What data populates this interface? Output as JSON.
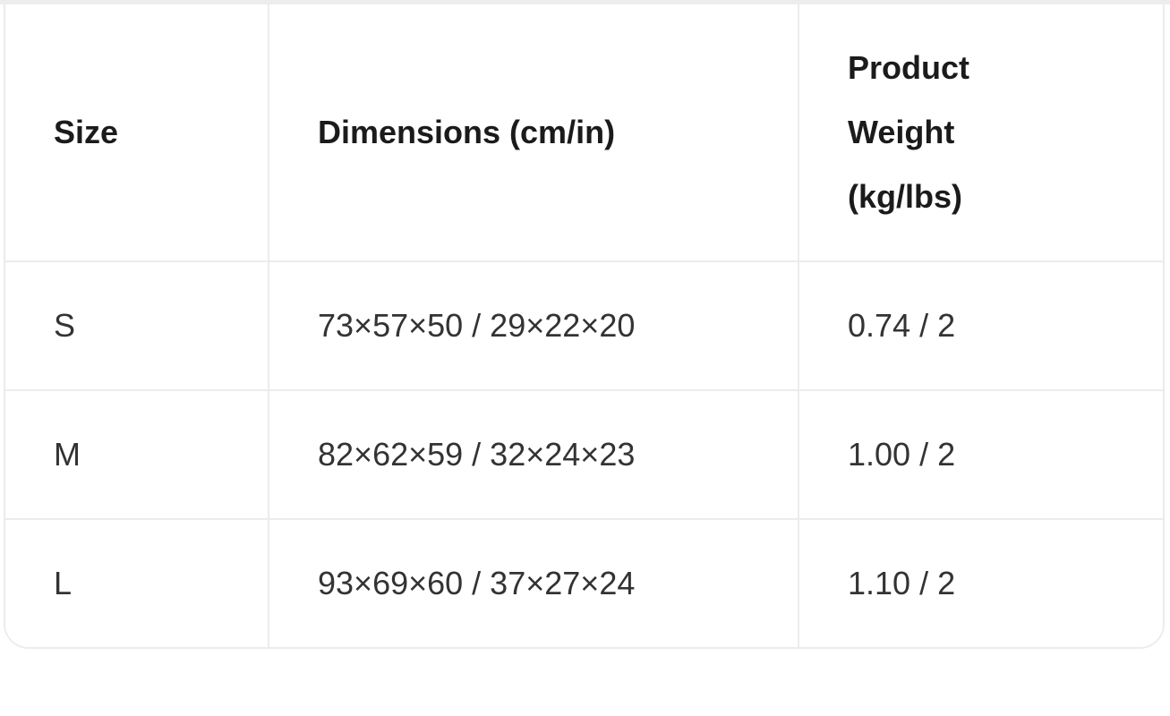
{
  "page": {
    "background": "#ffffff",
    "border_color": "#ececec",
    "header_text_color": "#1b1b1b",
    "cell_text_color": "#333333"
  },
  "chart_data": {
    "type": "table",
    "columns": [
      "Size",
      "Dimensions (cm/in)",
      "Product Weight (kg/lbs)"
    ],
    "rows": [
      [
        "S",
        "73×57×50 / 29×22×20",
        "0.74 / 2"
      ],
      [
        "M",
        "82×62×59 / 32×24×23",
        "1.00 / 2"
      ],
      [
        "L",
        "93×69×60 / 37×27×24",
        "1.10 / 2"
      ]
    ]
  },
  "table": {
    "headers": {
      "size": "Size",
      "dimensions": "Dimensions (cm/in)",
      "weight": "Product Weight (kg/lbs)"
    },
    "rows": [
      {
        "size": "S",
        "dimensions": "73×57×50 / 29×22×20",
        "weight": "0.74 / 2"
      },
      {
        "size": "M",
        "dimensions": "82×62×59 / 32×24×23",
        "weight": "1.00 / 2"
      },
      {
        "size": "L",
        "dimensions": "93×69×60 / 37×27×24",
        "weight": "1.10 / 2"
      }
    ]
  }
}
